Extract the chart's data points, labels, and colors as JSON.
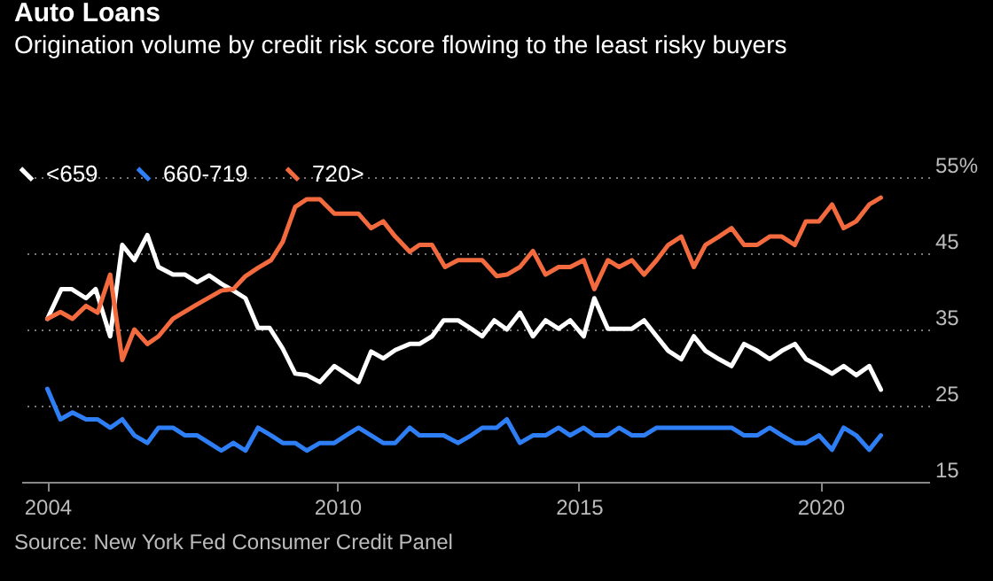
{
  "chart_data": {
    "type": "line",
    "title": "Auto Loans",
    "subtitle": "Origination volume by credit risk score flowing to the least risky buyers",
    "annotations": [
      "Source: New York Fed Consumer Credit Panel"
    ],
    "xlim": [
      2003.46,
      2022.25
    ],
    "xticks": [
      2004,
      2010,
      2015,
      2020
    ],
    "ylim": [
      15,
      55
    ],
    "yticks": [
      15,
      25,
      35,
      45,
      {
        "value": 55,
        "label": "55%"
      }
    ],
    "grid": "y",
    "legend": "top left",
    "series": [
      {
        "name": "<659",
        "color": "#ffffff",
        "x": [
          2004.0,
          2004.29,
          2004.5,
          2004.8,
          2005.0,
          2005.3,
          2005.55,
          2005.8,
          2006.07,
          2006.3,
          2006.6,
          2006.85,
          2007.1,
          2007.35,
          2007.6,
          2007.85,
          2008.1,
          2008.36,
          2008.6,
          2008.87,
          2009.13,
          2009.37,
          2009.64,
          2009.94,
          2010.18,
          2010.44,
          2010.7,
          2010.95,
          2011.2,
          2011.5,
          2011.7,
          2011.96,
          2012.2,
          2012.5,
          2012.77,
          2013.0,
          2013.25,
          2013.51,
          2013.78,
          2014.05,
          2014.31,
          2014.58,
          2014.82,
          2015.1,
          2015.32,
          2015.6,
          2015.83,
          2016.1,
          2016.35,
          2016.61,
          2016.85,
          2017.12,
          2017.38,
          2017.62,
          2017.9,
          2018.16,
          2018.42,
          2018.69,
          2018.95,
          2019.2,
          2019.47,
          2019.7,
          2019.97,
          2020.24,
          2020.48,
          2020.74,
          2021.01,
          2021.25
        ],
        "values": [
          36.4,
          40.3,
          40.3,
          39.1,
          40.3,
          34.1,
          46.1,
          44.1,
          47.4,
          43.2,
          42.2,
          42.2,
          41.2,
          42.1,
          41.0,
          40.1,
          39.1,
          35.2,
          35.2,
          32.5,
          29.2,
          29.0,
          28.1,
          30.2,
          29.2,
          28.1,
          32.1,
          31.2,
          32.3,
          33.1,
          33.1,
          34.1,
          36.2,
          36.2,
          35.1,
          34.1,
          36.2,
          35.0,
          37.2,
          34.1,
          36.2,
          35.1,
          36.2,
          34.1,
          39.1,
          35.1,
          35.1,
          35.1,
          36.2,
          34.1,
          32.2,
          31.1,
          34.1,
          32.2,
          31.1,
          30.2,
          33.1,
          32.2,
          31.1,
          32.2,
          33.1,
          31.1,
          30.2,
          29.2,
          30.2,
          29.0,
          30.2,
          27.1
        ]
      },
      {
        "name": "660-719",
        "color": "#2e7ff5",
        "x": [
          2004.0,
          2004.27,
          2004.52,
          2004.8,
          2005.04,
          2005.3,
          2005.55,
          2005.8,
          2006.07,
          2006.3,
          2006.6,
          2006.85,
          2007.1,
          2007.35,
          2007.6,
          2007.85,
          2008.1,
          2008.36,
          2008.63,
          2008.87,
          2009.13,
          2009.37,
          2009.64,
          2009.94,
          2010.18,
          2010.44,
          2010.7,
          2010.95,
          2011.2,
          2011.5,
          2011.7,
          2012.2,
          2012.5,
          2012.77,
          2013.0,
          2013.3,
          2013.51,
          2013.78,
          2014.05,
          2014.31,
          2014.58,
          2014.82,
          2015.1,
          2015.32,
          2015.6,
          2015.83,
          2016.1,
          2016.35,
          2016.61,
          2018.16,
          2018.42,
          2018.69,
          2018.95,
          2019.2,
          2019.47,
          2019.7,
          2019.97,
          2020.24,
          2020.48,
          2020.74,
          2021.01,
          2021.25
        ],
        "values": [
          27.2,
          23.2,
          24.1,
          23.2,
          23.2,
          22.1,
          23.2,
          21.1,
          20.1,
          22.1,
          22.1,
          21.1,
          21.1,
          20.1,
          19.1,
          20.1,
          19.1,
          22.1,
          21.1,
          20.1,
          20.1,
          19.1,
          20.1,
          20.1,
          21.1,
          22.1,
          21.1,
          20.1,
          20.1,
          22.1,
          21.1,
          21.1,
          20.1,
          21.1,
          22.1,
          22.1,
          23.2,
          20.1,
          21.1,
          21.1,
          22.1,
          21.1,
          22.1,
          21.1,
          21.1,
          22.1,
          21.1,
          21.1,
          22.1,
          22.1,
          21.1,
          21.1,
          22.1,
          21.1,
          20.1,
          20.1,
          21.1,
          19.2,
          22.1,
          21.1,
          19.2,
          21.1
        ]
      },
      {
        "name": "720>",
        "color": "#f26a3d",
        "x": [
          2004.0,
          2004.27,
          2004.52,
          2004.8,
          2005.04,
          2005.3,
          2005.55,
          2005.8,
          2006.07,
          2006.3,
          2006.6,
          2007.1,
          2007.6,
          2007.85,
          2008.1,
          2008.36,
          2008.63,
          2008.87,
          2009.13,
          2009.37,
          2009.64,
          2009.94,
          2010.44,
          2010.7,
          2010.95,
          2011.2,
          2011.5,
          2011.7,
          2011.96,
          2012.23,
          2012.5,
          2013.0,
          2013.3,
          2013.51,
          2013.78,
          2014.05,
          2014.31,
          2014.58,
          2014.82,
          2015.1,
          2015.32,
          2015.6,
          2015.83,
          2016.1,
          2016.35,
          2016.61,
          2016.85,
          2017.12,
          2017.38,
          2017.62,
          2017.9,
          2018.16,
          2018.42,
          2018.69,
          2018.95,
          2019.2,
          2019.47,
          2019.7,
          2019.97,
          2020.24,
          2020.48,
          2020.74,
          2021.01,
          2021.25
        ],
        "values": [
          36.4,
          37.3,
          36.4,
          38.1,
          37.2,
          42.2,
          31.0,
          35.0,
          33.1,
          34.1,
          36.4,
          38.3,
          40.1,
          40.3,
          42.0,
          43.1,
          44.1,
          46.5,
          51.1,
          52.1,
          52.1,
          50.2,
          50.2,
          48.3,
          49.2,
          47.2,
          45.2,
          46.1,
          46.1,
          43.2,
          44.1,
          44.1,
          42.0,
          42.2,
          43.2,
          45.3,
          42.2,
          43.2,
          43.2,
          44.1,
          40.3,
          44.1,
          43.2,
          44.1,
          42.2,
          44.1,
          46.1,
          47.2,
          43.2,
          46.1,
          47.2,
          48.3,
          46.1,
          46.1,
          47.2,
          47.2,
          46.1,
          49.2,
          49.2,
          51.4,
          48.3,
          49.2,
          51.4,
          52.3
        ]
      }
    ]
  }
}
